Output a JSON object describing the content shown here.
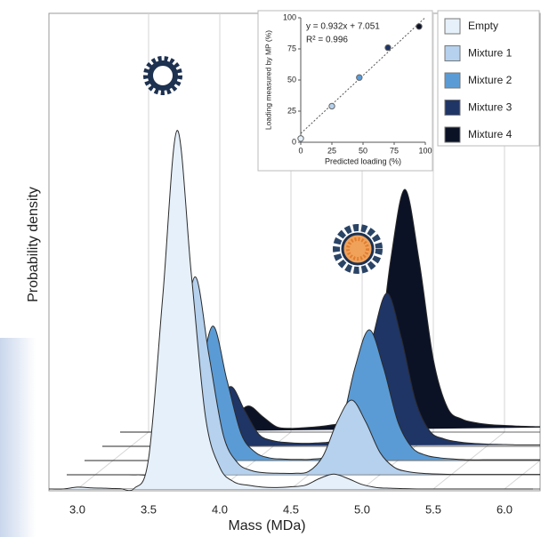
{
  "chart_data": [
    {
      "type": "ridgeline",
      "xlabel": "Mass (MDa)",
      "ylabel": "Probability density",
      "xlim": [
        2.8,
        6.25
      ],
      "ylim": [
        0,
        100
      ],
      "xticks": [
        {
          "value": 3,
          "label": "3.0"
        },
        {
          "value": 3.5,
          "label": "3.5"
        },
        {
          "value": 4,
          "label": "4.0"
        },
        {
          "value": 4.5,
          "label": "4.5"
        },
        {
          "value": 5,
          "label": "5.0"
        },
        {
          "value": 5.5,
          "label": "5.5"
        },
        {
          "value": 6,
          "label": "6.0"
        }
      ],
      "grid": true,
      "legend": "top-right",
      "x": [
        2.8,
        2.9,
        3.0,
        3.1,
        3.2,
        3.3,
        3.4,
        3.5,
        3.6,
        3.7,
        3.8,
        3.9,
        4.0,
        4.1,
        4.2,
        4.3,
        4.4,
        4.5,
        4.6,
        4.7,
        4.8,
        4.9,
        5.0,
        5.1,
        5.2,
        5.3,
        5.4,
        5.5,
        5.6,
        5.7,
        5.8,
        5.9,
        6.0,
        6.1,
        6.2
      ],
      "series": [
        {
          "name": "Empty",
          "color": "#e6f0fa",
          "values": [
            0,
            0,
            0.5,
            0.3,
            0.2,
            0.1,
            0.2,
            8.2,
            51.8,
            96,
            57.6,
            19.2,
            5.8,
            1.9,
            1,
            0.5,
            0.4,
            0.6,
            1,
            2.8,
            4,
            2.8,
            1.2,
            0.4,
            0.2,
            0.1,
            0,
            0,
            0,
            0,
            0,
            0,
            0,
            0,
            0
          ]
        },
        {
          "name": "Mixture 1",
          "color": "#b5d1ee",
          "values": [
            0,
            0,
            0,
            0,
            0,
            0,
            0.3,
            4.5,
            28.6,
            53,
            31.8,
            10.6,
            3.2,
            1.1,
            0.5,
            0.4,
            0.4,
            0.9,
            5,
            14.2,
            20,
            14.2,
            6,
            2,
            0.8,
            0.4,
            0.2,
            0.1,
            0.1,
            0.1,
            0.1,
            0.1,
            0.1,
            0.1,
            0.1
          ]
        },
        {
          "name": "Mixture 2",
          "color": "#5b9bd5",
          "values": [
            0,
            0,
            0,
            0,
            0,
            0,
            0.2,
            3.1,
            19.4,
            36,
            21.6,
            7.2,
            2.2,
            0.7,
            0.4,
            0.3,
            0.4,
            1.5,
            8.8,
            24.9,
            35,
            24.9,
            10.5,
            3.5,
            1.4,
            0.7,
            0.4,
            0.2,
            0.2,
            0.2,
            0.2,
            0.2,
            0.2,
            0.2,
            0.2
          ]
        },
        {
          "name": "Mixture 3",
          "color": "#1f3566",
          "values": [
            0,
            0,
            0,
            0,
            0,
            0,
            0.1,
            1.4,
            8.6,
            16,
            9.6,
            3.2,
            1.5,
            1,
            0.8,
            0.9,
            1.2,
            2.5,
            10.3,
            29.1,
            41,
            29.1,
            12.3,
            4.1,
            2,
            1.2,
            0.8,
            0.6,
            0.5,
            0.4,
            0.4,
            0.4,
            0.4,
            0.4,
            0.4
          ]
        },
        {
          "name": "Mixture 4",
          "color": "#0b1226",
          "values": [
            0,
            0,
            0,
            0,
            0,
            0,
            0.1,
            0.6,
            3.8,
            7,
            4.2,
            1.4,
            1,
            1.2,
            1.5,
            2,
            2.5,
            4.5,
            16,
            46,
            65,
            46,
            19.5,
            6.5,
            3.5,
            2.5,
            2,
            1.8,
            1.6,
            1.5,
            1.4,
            1.4,
            1.4,
            1.4,
            1.4
          ]
        }
      ]
    },
    {
      "type": "scatter",
      "xlabel": "Predicted loading (%)",
      "ylabel": "Loading measured by MP (%)",
      "equation": "y = 0.932x + 7.051",
      "r_squared": "R² = 0.996",
      "trendline": {
        "slope": 0.932,
        "intercept": 7.051
      },
      "xlim": [
        0,
        100
      ],
      "ylim": [
        0,
        100
      ],
      "xticks": [
        0,
        25,
        50,
        75,
        100
      ],
      "yticks": [
        0,
        25,
        50,
        75,
        100
      ],
      "x": [
        0,
        25,
        47,
        70,
        95
      ],
      "y": [
        3,
        29,
        52,
        76,
        93
      ]
    }
  ]
}
